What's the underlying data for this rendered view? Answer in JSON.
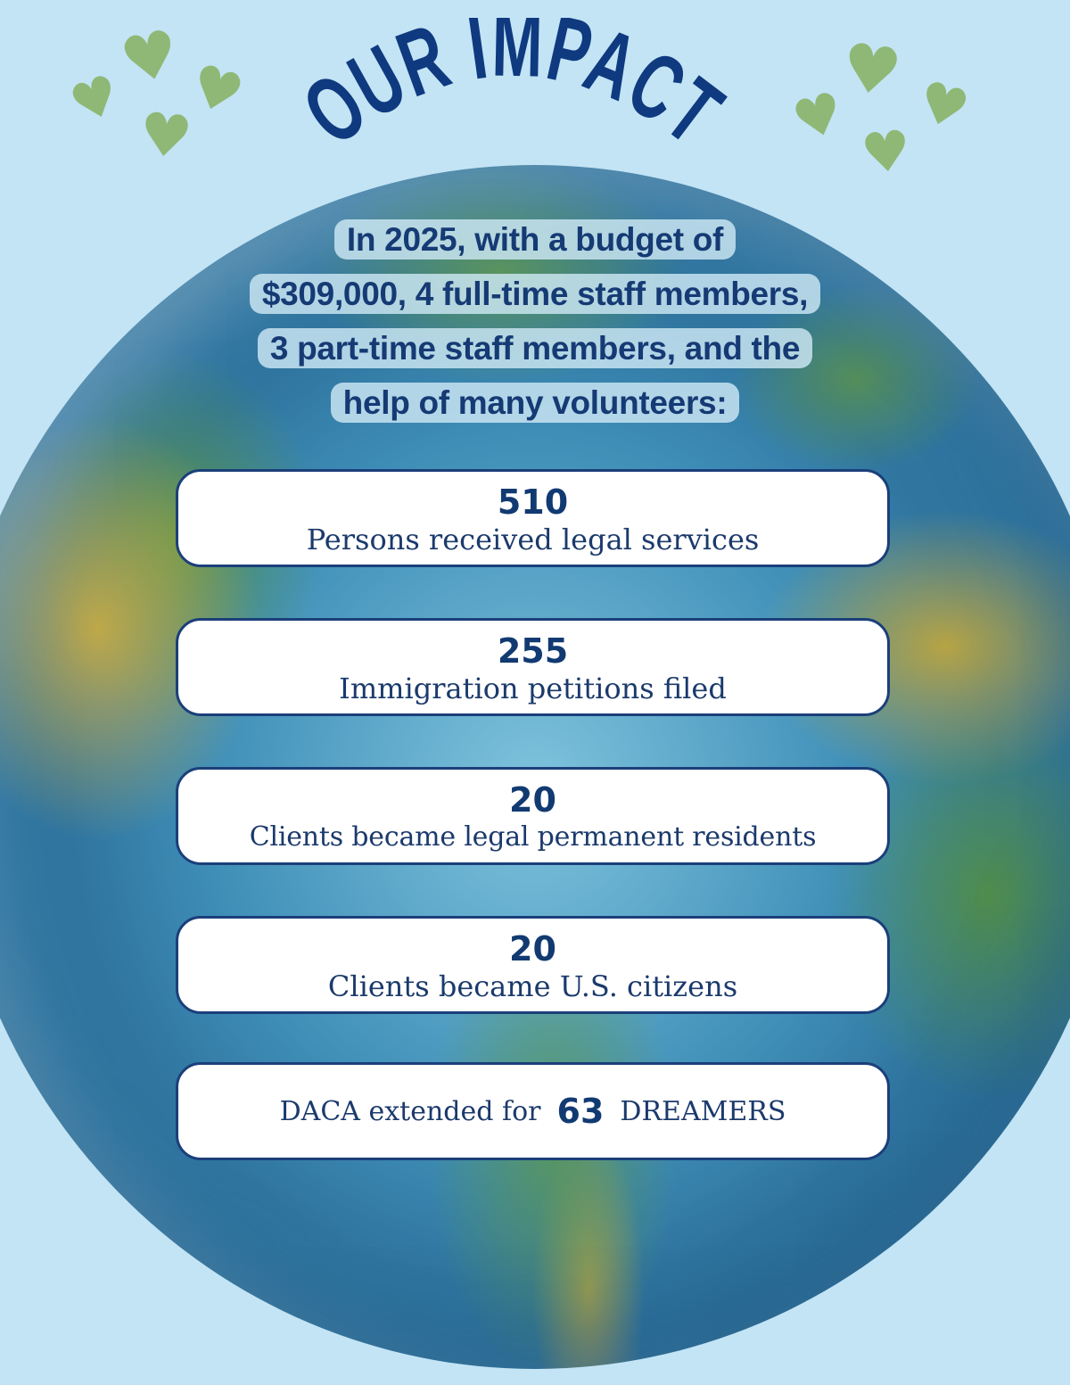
{
  "title": "OUR IMPACT",
  "intro": {
    "line1": "In 2025, with a budget of",
    "line2": "$309,000, 4 full-time staff members,",
    "line3": "3 part-time staff members, and the",
    "line4": "help of many volunteers:"
  },
  "stats": [
    {
      "value": "510",
      "label": "Persons received legal services"
    },
    {
      "value": "255",
      "label": "Immigration petitions filed"
    },
    {
      "value": "20",
      "label": "Clients became legal permanent residents"
    },
    {
      "value": "20",
      "label": "Clients became U.S. citizens"
    }
  ],
  "daca": {
    "prefix": "DACA extended for",
    "value": "63",
    "suffix": "DREAMERS"
  },
  "colors": {
    "navy": "#1b3f7a",
    "sky": "#c3e4f5",
    "heart_green": "#8fb876"
  },
  "icons": [
    "heart-icon"
  ]
}
